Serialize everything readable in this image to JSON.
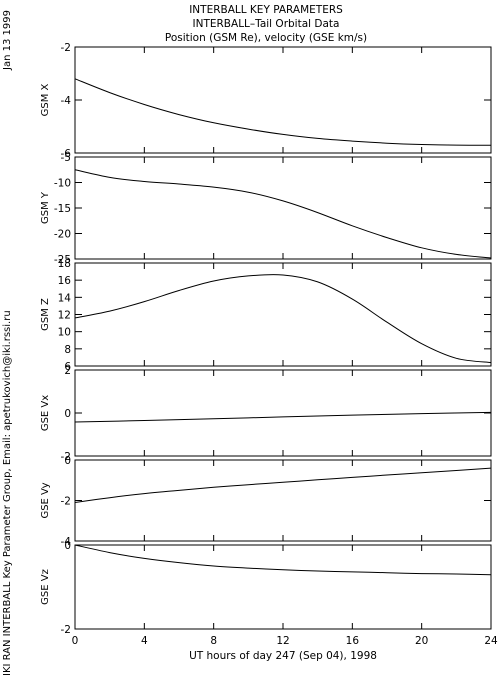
{
  "header": {
    "title_line1": "INTERBALL KEY PARAMETERS",
    "title_line2": "INTERBALL–Tail Orbital Data",
    "title_line3": "Position (GSM Re), velocity (GSE km/s)",
    "date": "Jan 13 1999",
    "credit": "IKI RAN INTERBALL Key Parameter Group, Email: apetrukovich@iki.rssi.ru"
  },
  "chart_data": {
    "type": "line",
    "xlabel": "UT hours of day 247 (Sep 04), 1998",
    "xlim": [
      0,
      24
    ],
    "xticks": [
      "0",
      "4",
      "8",
      "12",
      "16",
      "20",
      "24"
    ],
    "xtick_values": [
      0,
      4,
      8,
      12,
      16,
      20,
      24
    ],
    "grid": false,
    "panels": [
      {
        "ylabel": "GSM X",
        "ylim": [
          -6,
          -2
        ],
        "yticks": [
          "-2",
          "-4",
          "-6"
        ],
        "ytick_values": [
          -2,
          -4,
          -6
        ],
        "x": [
          0,
          2,
          4,
          6,
          8,
          10,
          12,
          14,
          16,
          18,
          20,
          22,
          24
        ],
        "values": [
          -3.2,
          -3.72,
          -4.17,
          -4.55,
          -4.86,
          -5.1,
          -5.3,
          -5.45,
          -5.55,
          -5.63,
          -5.68,
          -5.7,
          -5.71
        ]
      },
      {
        "ylabel": "GSM Y",
        "ylim": [
          -25,
          -5
        ],
        "yticks": [
          "-5",
          "-10",
          "-15",
          "-20",
          "-25"
        ],
        "ytick_values": [
          -5,
          -10,
          -15,
          -20,
          -25
        ],
        "x": [
          0,
          2,
          4,
          6,
          8,
          10,
          12,
          14,
          16,
          18,
          20,
          22,
          24
        ],
        "values": [
          -7.5,
          -9.0,
          -9.8,
          -10.3,
          -10.9,
          -11.9,
          -13.6,
          -15.9,
          -18.5,
          -20.8,
          -22.8,
          -24.1,
          -24.8
        ]
      },
      {
        "ylabel": "GSM Z",
        "ylim": [
          6,
          18
        ],
        "yticks": [
          "18",
          "16",
          "14",
          "12",
          "10",
          "8",
          "6"
        ],
        "ytick_values": [
          18,
          16,
          14,
          12,
          10,
          8,
          6
        ],
        "x": [
          0,
          2,
          4,
          6,
          8,
          10,
          12,
          14,
          16,
          18,
          20,
          22,
          24
        ],
        "values": [
          11.6,
          12.4,
          13.5,
          14.8,
          15.9,
          16.5,
          16.6,
          15.8,
          13.8,
          11.1,
          8.6,
          6.9,
          6.4
        ]
      },
      {
        "ylabel": "GSE Vx",
        "ylim": [
          -2,
          2
        ],
        "yticks": [
          "2",
          "0",
          "-2"
        ],
        "ytick_values": [
          2,
          0,
          -2
        ],
        "x": [
          0,
          4,
          8,
          12,
          16,
          20,
          24
        ],
        "values": [
          -0.42,
          -0.35,
          -0.27,
          -0.18,
          -0.1,
          -0.03,
          0.03
        ]
      },
      {
        "ylabel": "GSE Vy",
        "ylim": [
          -4,
          0
        ],
        "yticks": [
          "0",
          "-2",
          "-4"
        ],
        "ytick_values": [
          0,
          -2,
          -4
        ],
        "x": [
          0,
          2,
          4,
          6,
          8,
          10,
          12,
          14,
          16,
          18,
          20,
          22,
          24
        ],
        "values": [
          -2.1,
          -1.86,
          -1.66,
          -1.5,
          -1.35,
          -1.22,
          -1.1,
          -0.98,
          -0.86,
          -0.74,
          -0.63,
          -0.52,
          -0.4
        ]
      },
      {
        "ylabel": "GSE Vz",
        "ylim": [
          -2,
          0
        ],
        "yticks": [
          "0",
          "-2"
        ],
        "ytick_values": [
          0,
          -2
        ],
        "x": [
          0,
          2,
          4,
          6,
          8,
          10,
          12,
          14,
          16,
          18,
          20,
          22,
          24
        ],
        "values": [
          0.0,
          -0.18,
          -0.32,
          -0.42,
          -0.5,
          -0.55,
          -0.59,
          -0.62,
          -0.64,
          -0.66,
          -0.68,
          -0.69,
          -0.71
        ]
      }
    ]
  }
}
